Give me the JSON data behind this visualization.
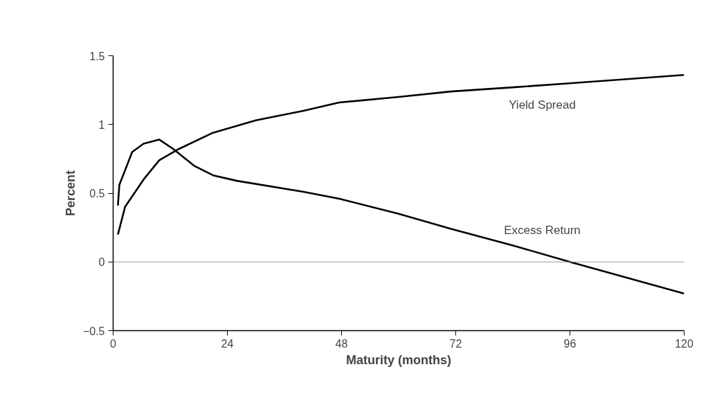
{
  "chart_data": {
    "type": "line",
    "xlabel": "Maturity (months)",
    "ylabel": "Percent",
    "xlim": [
      0,
      120
    ],
    "ylim": [
      -0.5,
      1.5
    ],
    "xticks": [
      0,
      24,
      48,
      72,
      96,
      120
    ],
    "yticks": [
      -0.5,
      0,
      0.5,
      1,
      1.5
    ],
    "grid": false,
    "marker": "none",
    "line_style": "solid",
    "ref_lines": [
      {
        "axis": "y",
        "value": 0,
        "color": "#999999"
      }
    ],
    "series": [
      {
        "name": "Yield Spread",
        "color": "#000000",
        "x": [
          1,
          2.5,
          6.4,
          9.7,
          13.7,
          21,
          30,
          40,
          47.5,
          60,
          71,
          84,
          96,
          108,
          120
        ],
        "values": [
          0.2,
          0.4,
          0.6,
          0.74,
          0.82,
          0.94,
          1.03,
          1.1,
          1.16,
          1.2,
          1.24,
          1.27,
          1.3,
          1.33,
          1.36
        ]
      },
      {
        "name": "Excess Return",
        "color": "#000000",
        "x": [
          1,
          1.3,
          4,
          6.4,
          9.7,
          12.7,
          17,
          21,
          26,
          40,
          47.5,
          60,
          71,
          84,
          96,
          120
        ],
        "values": [
          0.41,
          0.56,
          0.8,
          0.86,
          0.89,
          0.82,
          0.7,
          0.63,
          0.59,
          0.51,
          0.46,
          0.35,
          0.24,
          0.12,
          0.0,
          -0.23
        ]
      }
    ]
  }
}
